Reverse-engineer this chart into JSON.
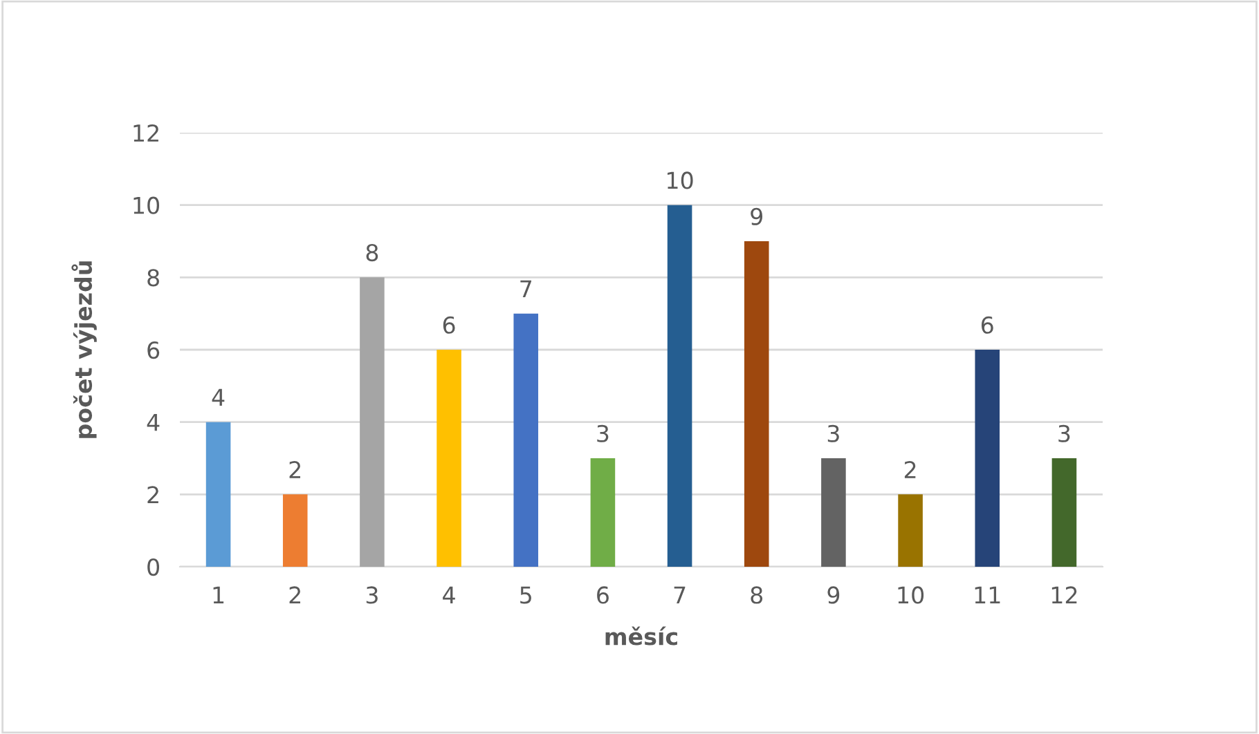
{
  "chart_data": {
    "type": "bar",
    "xlabel": "měsíc",
    "ylabel": "počet výjezdů",
    "categories": [
      "1",
      "2",
      "3",
      "4",
      "5",
      "6",
      "7",
      "8",
      "9",
      "10",
      "11",
      "12"
    ],
    "values": [
      4,
      2,
      8,
      6,
      7,
      3,
      10,
      9,
      3,
      2,
      6,
      3
    ],
    "colors": [
      "#5b9bd5",
      "#ed7d31",
      "#a5a5a5",
      "#ffc000",
      "#4472c4",
      "#70ad47",
      "#255e91",
      "#9e480e",
      "#636363",
      "#997300",
      "#264478",
      "#43682b"
    ],
    "ylim": [
      0,
      12
    ],
    "yticks": [
      0,
      2,
      4,
      6,
      8,
      10,
      12
    ],
    "grid": "y",
    "data_labels": true
  }
}
